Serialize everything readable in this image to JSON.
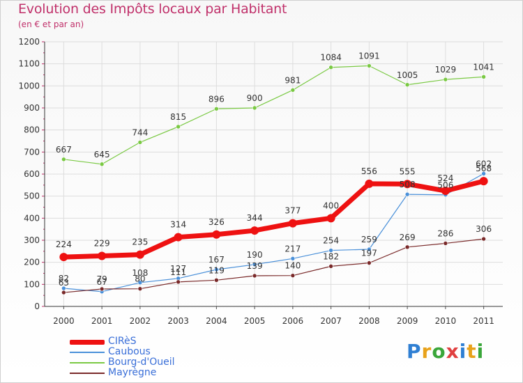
{
  "title": "Evolution des Impôts locaux par Habitant",
  "subtitle": "(en € et par an)",
  "brand": {
    "text": "Proxiti"
  },
  "colors": {
    "title": "#c0306a",
    "axis_text": "#333333",
    "grid": "#dddddd",
    "legend_text": "#3a6fd8"
  },
  "chart_data": {
    "type": "line",
    "title": "Evolution des Impôts locaux par Habitant",
    "subtitle": "(en € et par an)",
    "xlabel": "",
    "ylabel": "",
    "x": [
      "2000",
      "2001",
      "2002",
      "2003",
      "2004",
      "2005",
      "2006",
      "2007",
      "2008",
      "2009",
      "2010",
      "2011"
    ],
    "ylim": [
      0,
      1200
    ],
    "yticks": [
      0,
      100,
      200,
      300,
      400,
      500,
      600,
      700,
      800,
      900,
      1000,
      1100,
      1200
    ],
    "grid": true,
    "legend": "bottom-left",
    "series": [
      {
        "name": "Bourg-d'Oueil",
        "color": "#7ac943",
        "width": 1.2,
        "marker": 3,
        "values": [
          667,
          645,
          744,
          815,
          896,
          900,
          981,
          1084,
          1091,
          1005,
          1029,
          1041
        ],
        "labels": [
          "667",
          "645",
          "744",
          "815",
          "896",
          "900",
          "981",
          "1084",
          "1091",
          "1005",
          "1029",
          "1041"
        ]
      },
      {
        "name": "Caubous",
        "color": "#4a90d9",
        "width": 1.2,
        "marker": 3,
        "values": [
          82,
          67,
          108,
          127,
          167,
          190,
          217,
          254,
          259,
          508,
          506,
          602
        ],
        "labels": [
          "82",
          "67",
          "108",
          "127",
          "167",
          "190",
          "217",
          "254",
          "259",
          "508",
          "506",
          "602"
        ]
      },
      {
        "name": "Mayrègne",
        "color": "#7a2a2a",
        "width": 1.2,
        "marker": 3,
        "values": [
          63,
          79,
          80,
          111,
          119,
          139,
          140,
          182,
          197,
          269,
          286,
          306
        ],
        "labels": [
          "63",
          "79",
          "80",
          "111",
          "119",
          "139",
          "140",
          "182",
          "197",
          "269",
          "286",
          "306"
        ]
      },
      {
        "name": "CIRèS",
        "color": "#ee1111",
        "width": 7,
        "marker": 6,
        "values": [
          224,
          229,
          235,
          314,
          326,
          344,
          377,
          400,
          556,
          555,
          524,
          568
        ],
        "labels": [
          "224",
          "229",
          "235",
          "314",
          "326",
          "344",
          "377",
          "400",
          "556",
          "555",
          "524",
          "568"
        ]
      }
    ]
  },
  "legend_items": [
    {
      "name": "CIRèS",
      "color": "#ee1111",
      "thickness": 7
    },
    {
      "name": "Caubous",
      "color": "#4a90d9",
      "thickness": 2
    },
    {
      "name": "Bourg-d'Oueil",
      "color": "#7ac943",
      "thickness": 2
    },
    {
      "name": "Mayrègne",
      "color": "#7a2a2a",
      "thickness": 2
    }
  ]
}
